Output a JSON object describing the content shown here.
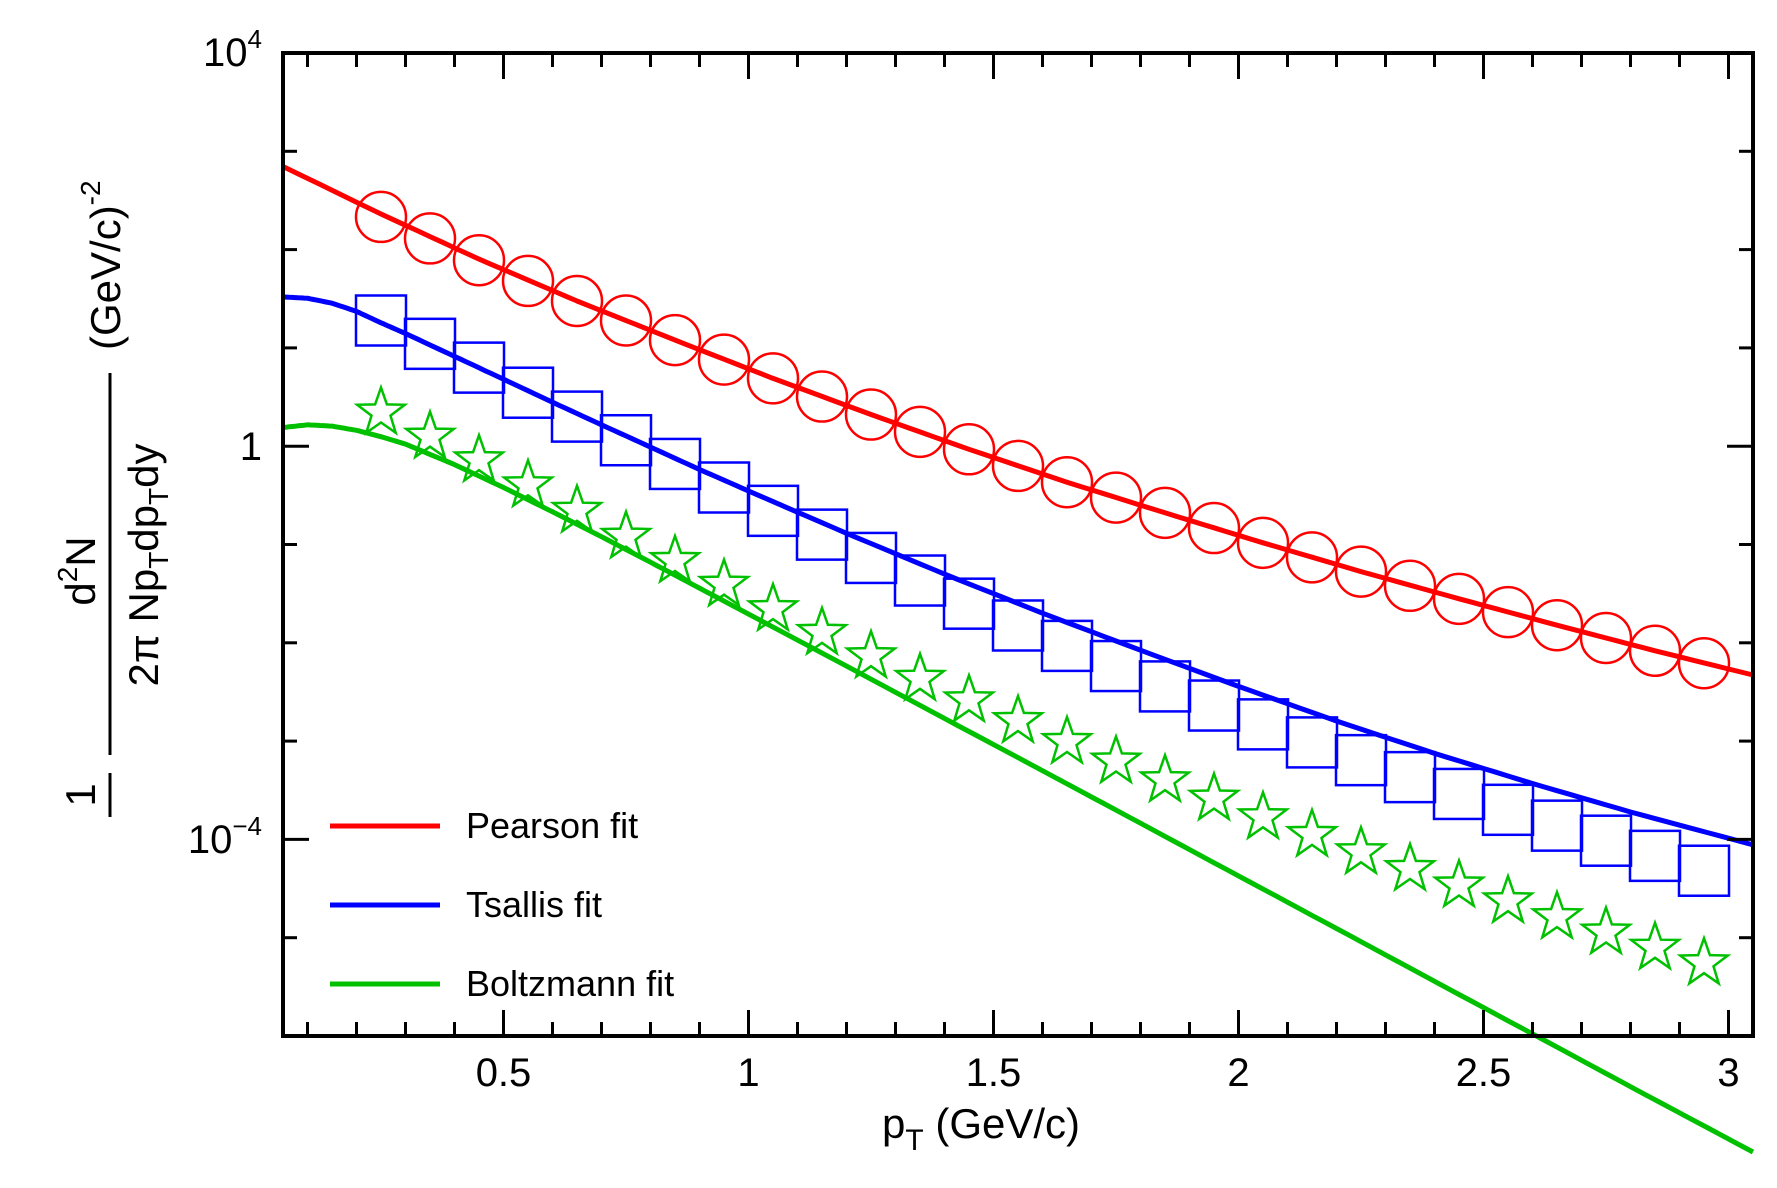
{
  "chart_data": {
    "type": "scatter",
    "title": "",
    "xlabel": {
      "main": "p",
      "sub": "T",
      "rest": " (GeV/c)"
    },
    "ylabel": {
      "numerator": "1",
      "frac_numerator": {
        "d": "d",
        "exp": "2",
        "N": "N"
      },
      "frac_denominator": {
        "pre": "2π Np",
        "sub1": "T",
        "mid": "dp",
        "sub2": "T",
        "post": "dy"
      },
      "units": "(GeV/c)",
      "units_exp": "-2"
    },
    "xlim": [
      0.05,
      3.05
    ],
    "ylim": [
      1e-06,
      10000.0
    ],
    "yscale": "log",
    "x_ticks": [
      {
        "value": 0.5,
        "label": "0.5"
      },
      {
        "value": 1,
        "label": "1"
      },
      {
        "value": 1.5,
        "label": "1.5"
      },
      {
        "value": 2,
        "label": "2"
      },
      {
        "value": 2.5,
        "label": "2.5"
      },
      {
        "value": 3,
        "label": "3"
      }
    ],
    "y_ticks": [
      {
        "value": 10000,
        "base": "10",
        "exp": "4"
      },
      {
        "value": 1,
        "base": "1",
        "exp": ""
      },
      {
        "value": 0.0001,
        "base": "10",
        "exp": "−4"
      }
    ],
    "x": [
      0.25,
      0.35,
      0.45,
      0.55,
      0.65,
      0.75,
      0.85,
      0.95,
      1.05,
      1.15,
      1.25,
      1.35,
      1.45,
      1.55,
      1.65,
      1.75,
      1.85,
      1.95,
      2.05,
      2.15,
      2.25,
      2.35,
      2.45,
      2.55,
      2.65,
      2.75,
      2.85,
      2.95
    ],
    "series": [
      {
        "name": "data (circles)",
        "marker": "circle",
        "color": "#ff0000",
        "values": [
          215,
          130,
          78,
          48,
          30,
          19,
          12,
          7.6,
          4.9,
          3.2,
          2.1,
          1.4,
          0.93,
          0.63,
          0.43,
          0.3,
          0.21,
          0.147,
          0.104,
          0.074,
          0.053,
          0.038,
          0.028,
          0.0205,
          0.0151,
          0.0112,
          0.0083,
          0.0062
        ]
      },
      {
        "name": "data (squares)",
        "marker": "square",
        "color": "#0000ff",
        "values": [
          19,
          11,
          6.3,
          3.5,
          2.0,
          1.15,
          0.66,
          0.38,
          0.22,
          0.126,
          0.073,
          0.043,
          0.025,
          0.015,
          0.0093,
          0.0058,
          0.0036,
          0.0023,
          0.00148,
          0.00097,
          0.00064,
          0.00043,
          0.00029,
          0.0002,
          0.000138,
          9.7e-05,
          6.8e-05,
          4.8e-05
        ]
      },
      {
        "name": "data (stars)",
        "marker": "star",
        "color": "#00c000",
        "values": [
          2.2,
          1.25,
          0.72,
          0.4,
          0.22,
          0.12,
          0.068,
          0.039,
          0.022,
          0.0126,
          0.0073,
          0.0043,
          0.0026,
          0.0016,
          0.00098,
          0.00062,
          0.0004,
          0.00026,
          0.000168,
          0.000111,
          7.4e-05,
          5e-05,
          3.4e-05,
          2.35e-05,
          1.62e-05,
          1.13e-05,
          7.9e-06,
          5.5e-06
        ]
      }
    ],
    "fits": [
      {
        "name": "Pearson fit",
        "color": "#ff0000",
        "x": [
          0.05,
          0.25,
          0.45,
          0.65,
          0.85,
          1.05,
          1.25,
          1.45,
          1.65,
          1.85,
          2.05,
          2.25,
          2.45,
          2.65,
          2.85,
          3.05
        ],
        "y": [
          700,
          230,
          80,
          30,
          12,
          4.9,
          2.1,
          0.93,
          0.43,
          0.21,
          0.104,
          0.053,
          0.028,
          0.0151,
          0.0083,
          0.0047
        ]
      },
      {
        "name": "Tsallis fit",
        "color": "#0000ff",
        "x": [
          0.05,
          0.1,
          0.15,
          0.2,
          0.25,
          0.3,
          0.4,
          0.5,
          0.6,
          0.7,
          0.8,
          0.9,
          1.0,
          1.2,
          1.4,
          1.6,
          1.8,
          2.0,
          2.2,
          2.4,
          2.6,
          2.8,
          3.05
        ],
        "y": [
          33,
          32,
          28.5,
          23.5,
          18,
          14,
          8.2,
          4.8,
          2.8,
          1.65,
          0.98,
          0.58,
          0.35,
          0.13,
          0.05,
          0.02,
          0.0084,
          0.0036,
          0.0016,
          0.00075,
          0.00037,
          0.00019,
          8.8e-05
        ]
      },
      {
        "name": "Boltzmann fit",
        "color": "#00c000",
        "x": [
          0.05,
          0.1,
          0.15,
          0.2,
          0.25,
          0.3,
          0.4,
          0.5,
          0.6,
          0.7,
          0.8,
          0.9,
          1.0,
          1.2,
          1.4,
          1.6,
          1.8,
          2.0,
          2.2,
          2.4,
          2.6,
          2.8,
          3.05
        ],
        "y": [
          1.55,
          1.65,
          1.6,
          1.45,
          1.25,
          1.05,
          0.65,
          0.38,
          0.215,
          0.12,
          0.066,
          0.036,
          0.0196,
          0.0058,
          0.0017,
          0.0005,
          0.000146,
          4.25e-05,
          1.24e-05,
          3.6e-06,
          1.05e-06,
          3.05e-07,
          6.6e-08
        ]
      }
    ],
    "legend": {
      "position": "bottom-left",
      "entries": [
        {
          "label": "Pearson fit",
          "color": "#ff0000"
        },
        {
          "label": "Tsallis fit",
          "color": "#0000ff"
        },
        {
          "label": "Boltzmann fit",
          "color": "#00c000"
        }
      ]
    },
    "grid": false
  }
}
